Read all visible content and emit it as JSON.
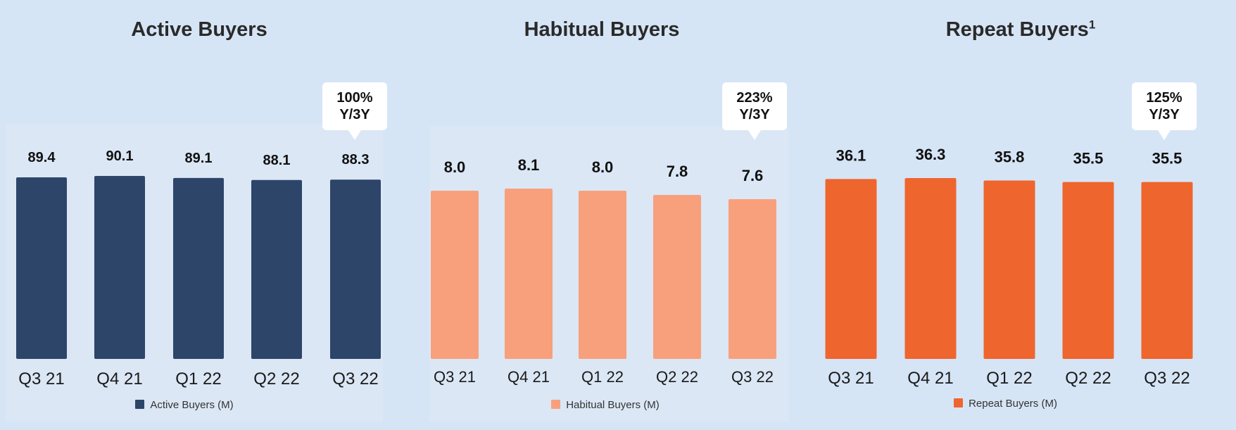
{
  "chart_data": [
    {
      "type": "bar",
      "title": "Active Buyers",
      "title_superscript": "",
      "categories": [
        "Q3 21",
        "Q4 21",
        "Q1 22",
        "Q2 22",
        "Q3 22"
      ],
      "series": [
        {
          "name": "Active Buyers (M)",
          "values": [
            89.4,
            90.1,
            89.1,
            88.1,
            88.3
          ]
        }
      ],
      "value_labels": [
        "89.4",
        "90.1",
        "89.1",
        "88.1",
        "88.3"
      ],
      "color": "#2d4569",
      "ylim": [
        0,
        90.1
      ],
      "callout": {
        "line1": "100%",
        "line2": "Y/3Y",
        "category": "Q3 22"
      },
      "legend": "bottom"
    },
    {
      "type": "bar",
      "title": "Habitual Buyers",
      "title_superscript": "",
      "categories": [
        "Q3 21",
        "Q4 21",
        "Q1 22",
        "Q2 22",
        "Q3 22"
      ],
      "series": [
        {
          "name": "Habitual Buyers (M)",
          "values": [
            8.0,
            8.1,
            8.0,
            7.8,
            7.6
          ]
        }
      ],
      "value_labels": [
        "8.0",
        "8.1",
        "8.0",
        "7.8",
        "7.6"
      ],
      "color": "#f8a07b",
      "ylim": [
        0,
        8.1
      ],
      "callout": {
        "line1": "223%",
        "line2": "Y/3Y",
        "category": "Q3 22"
      },
      "legend": "bottom"
    },
    {
      "type": "bar",
      "title": "Repeat Buyers",
      "title_superscript": "1",
      "categories": [
        "Q3 21",
        "Q4 21",
        "Q1 22",
        "Q2 22",
        "Q3 22"
      ],
      "series": [
        {
          "name": "Repeat Buyers (M)",
          "values": [
            36.1,
            36.3,
            35.8,
            35.5,
            35.5
          ]
        }
      ],
      "value_labels": [
        "36.1",
        "36.3",
        "35.8",
        "35.5",
        "35.5"
      ],
      "color": "#ef652e",
      "ylim": [
        0,
        36.3
      ],
      "callout": {
        "line1": "125%",
        "line2": "Y/3Y",
        "category": "Q3 22"
      },
      "legend": "bottom"
    }
  ]
}
